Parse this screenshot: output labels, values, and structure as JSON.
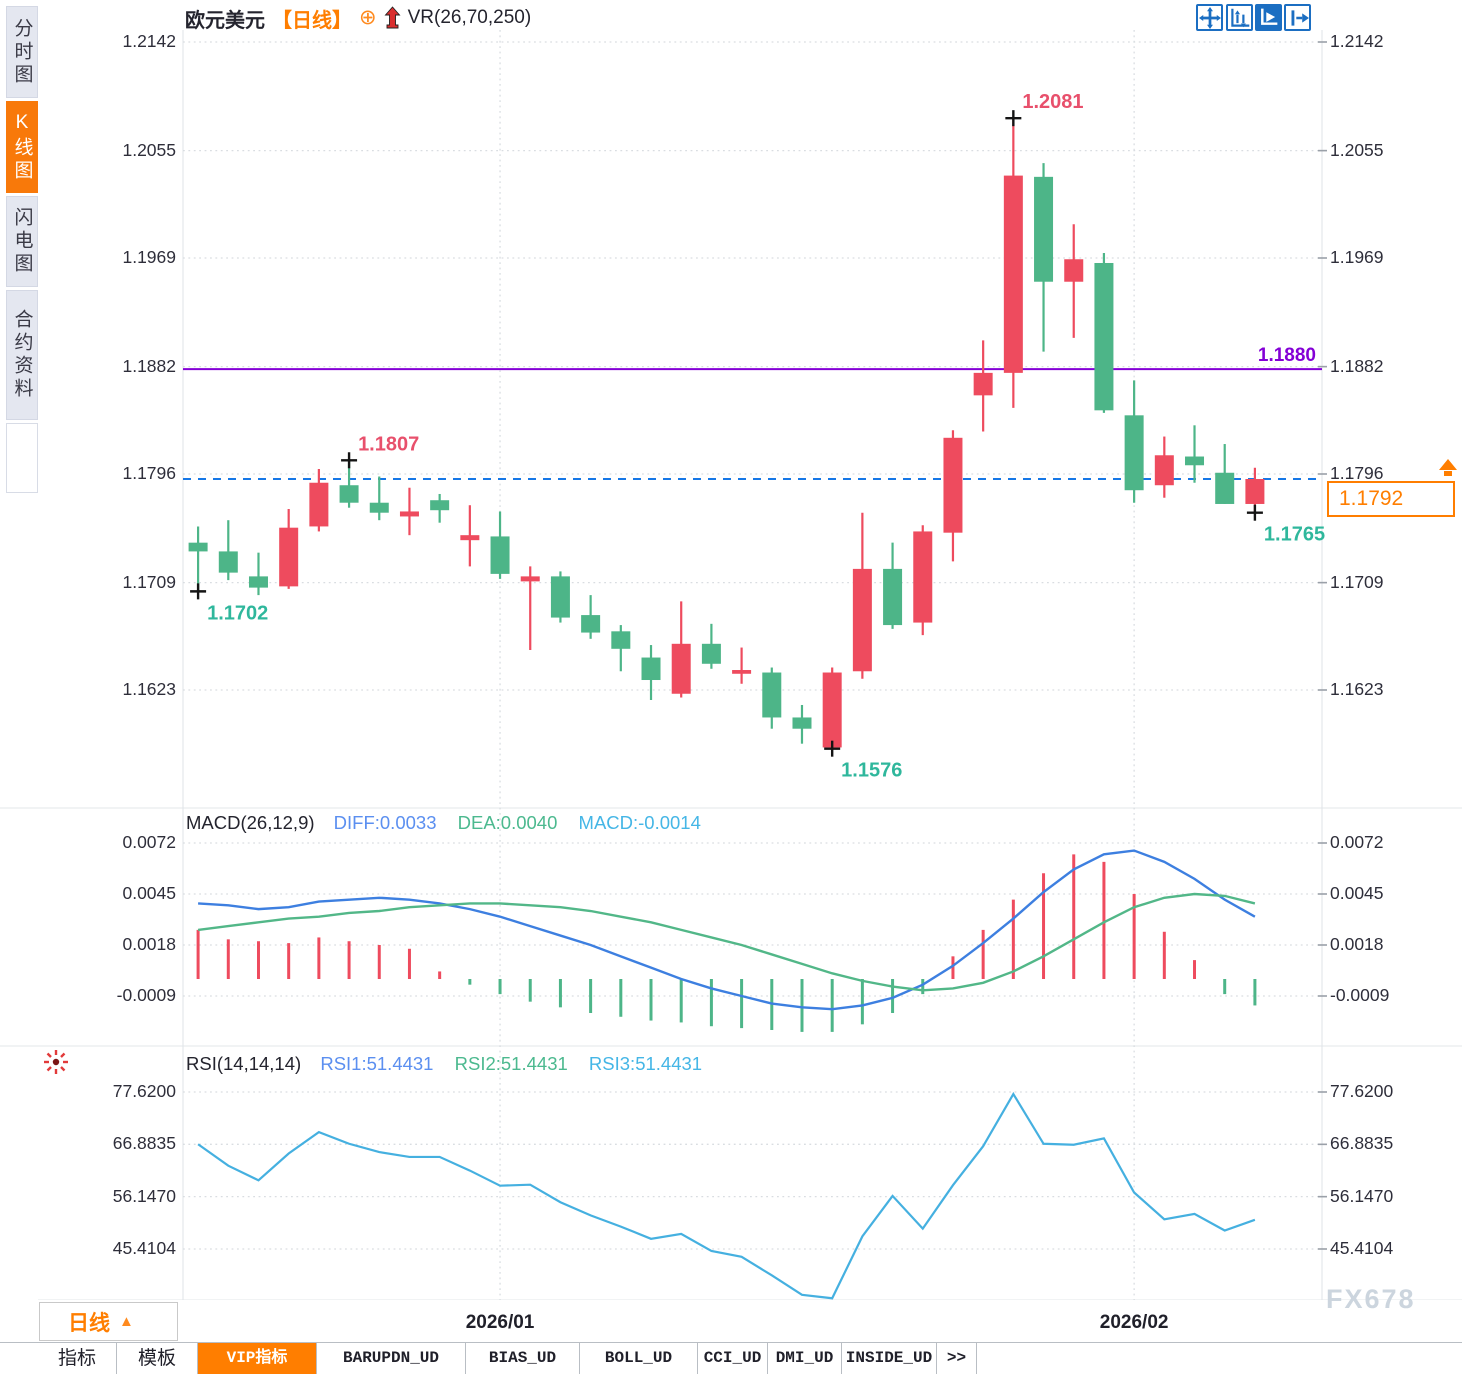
{
  "header": {
    "symbol": "欧元美元",
    "period_tag": "【日线】",
    "circle_plus_glyph": "⊕",
    "indicator": "VR(26,70,250)"
  },
  "sidebar": {
    "items": [
      {
        "label": "分时图",
        "active": false
      },
      {
        "label": "K线图",
        "active": true
      },
      {
        "label": "闪电图",
        "active": false
      },
      {
        "label": "合约资料",
        "active": false
      }
    ]
  },
  "toolbar": {
    "icons": [
      "move-icon",
      "axis-adjust-icon",
      "axis-play-icon",
      "jump-right-icon"
    ]
  },
  "price_box": {
    "value": "1.1792"
  },
  "period_button": {
    "label": "日线",
    "arrow_glyph": "▲"
  },
  "bottom_tabs": {
    "items": [
      {
        "label": "指标",
        "active": false
      },
      {
        "label": "模板",
        "active": false
      },
      {
        "label": "VIP指标",
        "active": true
      },
      {
        "label": "BARUPDN_UD",
        "active": false
      },
      {
        "label": "BIAS_UD",
        "active": false
      },
      {
        "label": "BOLL_UD",
        "active": false
      },
      {
        "label": "CCI_UD",
        "active": false
      },
      {
        "label": "DMI_UD",
        "active": false
      },
      {
        "label": "INSIDE_UD",
        "active": false
      },
      {
        "label": ">>",
        "active": false
      }
    ]
  },
  "watermark": "FX678",
  "colors": {
    "up": "#ee4b5e",
    "down": "#4db588",
    "diff_line": "#3d7fe0",
    "dea_line": "#52b788",
    "rsi_line": "#45b0e0",
    "accent_orange": "#ff7e00",
    "hline_purple": "#8400d6",
    "current_price_blue": "#1677e6",
    "high_label": "#e8506c",
    "low_label": "#2fb79c",
    "grid": "#d9dde1",
    "toolbar_blue": "#1b6ec2"
  },
  "chart_data": [
    {
      "type": "candlestick",
      "title": "欧元美元【日线】",
      "y_ticks": [
        1.2142,
        1.2055,
        1.1969,
        1.1882,
        1.1796,
        1.1709,
        1.1623
      ],
      "x_labels": [
        "2026/01",
        "2026/02"
      ],
      "x_tick_candle_index": [
        10,
        31
      ],
      "candles_ohlc_as_OHLC_order_o_h_l_c": "o,h,l,c",
      "candles": [
        [
          1.1741,
          1.1754,
          1.1702,
          1.1734
        ],
        [
          1.1734,
          1.1759,
          1.1711,
          1.1717
        ],
        [
          1.1714,
          1.1733,
          1.1699,
          1.1705
        ],
        [
          1.1706,
          1.1768,
          1.1704,
          1.1753
        ],
        [
          1.1754,
          1.18,
          1.175,
          1.1789
        ],
        [
          1.1787,
          1.1807,
          1.1769,
          1.1773
        ],
        [
          1.1773,
          1.1794,
          1.1759,
          1.1765
        ],
        [
          1.1762,
          1.1785,
          1.1747,
          1.1766
        ],
        [
          1.1775,
          1.178,
          1.1757,
          1.1767
        ],
        [
          1.1743,
          1.1771,
          1.1722,
          1.1747
        ],
        [
          1.1746,
          1.1766,
          1.1712,
          1.1716
        ],
        [
          1.171,
          1.1722,
          1.1655,
          1.1714
        ],
        [
          1.1714,
          1.1718,
          1.1677,
          1.1681
        ],
        [
          1.1683,
          1.1699,
          1.1664,
          1.1669
        ],
        [
          1.167,
          1.1675,
          1.1638,
          1.1656
        ],
        [
          1.1649,
          1.1659,
          1.1615,
          1.1631
        ],
        [
          1.162,
          1.1694,
          1.1617,
          1.166
        ],
        [
          1.166,
          1.1676,
          1.164,
          1.1644
        ],
        [
          1.1636,
          1.1657,
          1.1628,
          1.1639
        ],
        [
          1.1637,
          1.1641,
          1.1592,
          1.1601
        ],
        [
          1.1601,
          1.1611,
          1.158,
          1.1592
        ],
        [
          1.1577,
          1.1641,
          1.1576,
          1.1637
        ],
        [
          1.1638,
          1.1765,
          1.1632,
          1.172
        ],
        [
          1.172,
          1.1741,
          1.1672,
          1.1675
        ],
        [
          1.1677,
          1.1755,
          1.1667,
          1.175
        ],
        [
          1.1749,
          1.1831,
          1.1726,
          1.1825
        ],
        [
          1.1859,
          1.1903,
          1.183,
          1.1877
        ],
        [
          1.1877,
          1.2081,
          1.1849,
          1.2035
        ],
        [
          1.2034,
          1.2045,
          1.1894,
          1.195
        ],
        [
          1.195,
          1.1996,
          1.1905,
          1.1968
        ],
        [
          1.1965,
          1.1973,
          1.1845,
          1.1847
        ],
        [
          1.1843,
          1.1871,
          1.1773,
          1.1783
        ],
        [
          1.1787,
          1.1826,
          1.1777,
          1.1811
        ],
        [
          1.181,
          1.1835,
          1.1789,
          1.1803
        ],
        [
          1.1797,
          1.182,
          1.1772,
          1.1772
        ],
        [
          1.1772,
          1.1801,
          1.1765,
          1.1792
        ]
      ],
      "annotations": [
        {
          "index": 0,
          "price": 1.1702,
          "label": "1.1702",
          "kind": "low",
          "placement": "below"
        },
        {
          "index": 5,
          "price": 1.1807,
          "label": "1.1807",
          "kind": "high",
          "placement": "above"
        },
        {
          "index": 21,
          "price": 1.1576,
          "label": "1.1576",
          "kind": "low",
          "placement": "below"
        },
        {
          "index": 27,
          "price": 1.2081,
          "label": "1.2081",
          "kind": "high",
          "placement": "above"
        },
        {
          "index": 35,
          "price": 1.1765,
          "label": "1.1765",
          "kind": "low",
          "placement": "below"
        }
      ],
      "hlines": [
        {
          "price": 1.188,
          "label": "1.1880",
          "style": "solid",
          "color_key": "hline_purple"
        },
        {
          "price": 1.1792,
          "label": "",
          "style": "dashed",
          "color_key": "current_price_blue"
        }
      ],
      "current_price": "1.1792"
    },
    {
      "type": "macd",
      "params_label": "MACD(26,12,9)",
      "legend": {
        "diff": "DIFF:0.0033",
        "dea": "DEA:0.0040",
        "macd": "MACD:-0.0014"
      },
      "y_ticks": [
        0.0072,
        0.0045,
        0.0018,
        -0.0009
      ],
      "diff": [
        0.004,
        0.0039,
        0.0037,
        0.0038,
        0.0041,
        0.0042,
        0.0043,
        0.0042,
        0.004,
        0.0037,
        0.0033,
        0.0028,
        0.0023,
        0.0018,
        0.0012,
        0.0006,
        0.0,
        -0.0005,
        -0.0009,
        -0.0013,
        -0.0015,
        -0.0016,
        -0.0014,
        -0.001,
        -0.0003,
        0.0007,
        0.0019,
        0.0032,
        0.0046,
        0.0058,
        0.0066,
        0.0068,
        0.0062,
        0.0053,
        0.0042,
        0.0033
      ],
      "dea": [
        0.0026,
        0.0028,
        0.003,
        0.0032,
        0.0033,
        0.0035,
        0.0036,
        0.0038,
        0.0039,
        0.004,
        0.004,
        0.0039,
        0.0038,
        0.0036,
        0.0033,
        0.003,
        0.0026,
        0.0022,
        0.0018,
        0.0013,
        0.0008,
        0.0003,
        -0.0001,
        -0.0004,
        -0.0006,
        -0.0005,
        -0.0002,
        0.0004,
        0.0012,
        0.0021,
        0.003,
        0.0038,
        0.0043,
        0.0045,
        0.0044,
        0.004
      ],
      "hist": [
        0.0026,
        0.0021,
        0.002,
        0.0019,
        0.0022,
        0.002,
        0.0018,
        0.0016,
        0.0004,
        -0.0003,
        -0.0008,
        -0.0012,
        -0.0015,
        -0.0018,
        -0.002,
        -0.0022,
        -0.0023,
        -0.0025,
        -0.0026,
        -0.0027,
        -0.0028,
        -0.0028,
        -0.0024,
        -0.0018,
        -0.0008,
        0.0012,
        0.0026,
        0.0042,
        0.0056,
        0.0066,
        0.0062,
        0.0045,
        0.0025,
        0.001,
        -0.0008,
        -0.0014
      ]
    },
    {
      "type": "line",
      "params_label": "RSI(14,14,14)",
      "legend": {
        "rsi1": "RSI1:51.4431",
        "rsi2": "RSI2:51.4431",
        "rsi3": "RSI3:51.4431"
      },
      "y_ticks": [
        77.62,
        66.8835,
        56.147,
        45.4104
      ],
      "values": [
        66.9,
        62.5,
        59.5,
        65.0,
        69.4,
        67.0,
        65.3,
        64.3,
        64.3,
        61.5,
        58.4,
        58.6,
        55.0,
        52.3,
        50.0,
        47.5,
        48.5,
        45.0,
        43.8,
        40.0,
        36.0,
        35.3,
        48.0,
        56.3,
        49.6,
        58.5,
        66.5,
        77.2,
        67.0,
        66.8,
        68.1,
        57.0,
        51.5,
        52.6,
        49.2,
        51.4
      ]
    }
  ]
}
